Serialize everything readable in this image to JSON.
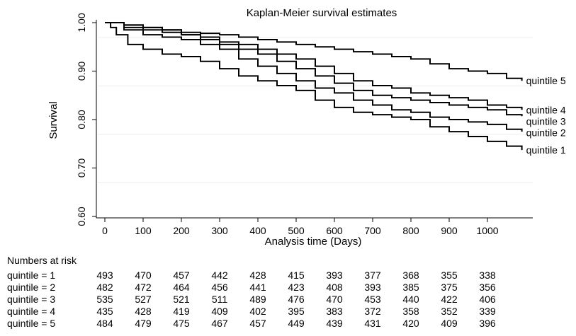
{
  "chart_data": {
    "type": "line",
    "title": "Kaplan-Meier survival estimates",
    "xlabel": "Analysis time (Days)",
    "ylabel": "Survival",
    "xlim": [
      0,
      1090
    ],
    "ylim": [
      0.6,
      1.0
    ],
    "xticks": [
      0,
      100,
      200,
      300,
      400,
      500,
      600,
      700,
      800,
      900,
      1000
    ],
    "xtick_labels": [
      "0",
      "100",
      "200",
      "300",
      "400",
      "500",
      "600",
      "700",
      "800",
      "900",
      "1000"
    ],
    "yticks": [
      0.6,
      0.7,
      0.8,
      0.9,
      1.0
    ],
    "ytick_labels": [
      "0.60",
      "0.70",
      "0.80",
      "0.90",
      "1.00"
    ],
    "grid": true,
    "series": [
      {
        "name": "quintile 1",
        "x": [
          0,
          15,
          30,
          60,
          100,
          150,
          200,
          250,
          300,
          350,
          400,
          450,
          500,
          550,
          600,
          650,
          700,
          750,
          800,
          850,
          900,
          950,
          1000,
          1050,
          1090
        ],
        "y": [
          1.0,
          0.99,
          0.975,
          0.955,
          0.945,
          0.935,
          0.93,
          0.92,
          0.905,
          0.89,
          0.88,
          0.87,
          0.86,
          0.84,
          0.825,
          0.815,
          0.81,
          0.805,
          0.8,
          0.785,
          0.775,
          0.765,
          0.755,
          0.745,
          0.737
        ]
      },
      {
        "name": "quintile 2",
        "x": [
          0,
          50,
          100,
          150,
          200,
          250,
          300,
          350,
          400,
          450,
          500,
          550,
          600,
          650,
          700,
          750,
          800,
          850,
          900,
          950,
          1000,
          1050,
          1090
        ],
        "y": [
          1.0,
          0.985,
          0.975,
          0.97,
          0.965,
          0.955,
          0.945,
          0.925,
          0.91,
          0.895,
          0.88,
          0.865,
          0.855,
          0.84,
          0.83,
          0.82,
          0.815,
          0.805,
          0.8,
          0.795,
          0.79,
          0.78,
          0.775
        ]
      },
      {
        "name": "quintile 3",
        "x": [
          0,
          50,
          100,
          150,
          200,
          250,
          300,
          350,
          400,
          450,
          500,
          550,
          600,
          650,
          700,
          750,
          800,
          850,
          900,
          950,
          1000,
          1050,
          1090
        ],
        "y": [
          1.0,
          0.99,
          0.985,
          0.98,
          0.975,
          0.965,
          0.955,
          0.945,
          0.935,
          0.92,
          0.905,
          0.89,
          0.875,
          0.86,
          0.85,
          0.845,
          0.84,
          0.835,
          0.83,
          0.825,
          0.82,
          0.81,
          0.807
        ]
      },
      {
        "name": "quintile 4",
        "x": [
          0,
          50,
          100,
          150,
          200,
          250,
          300,
          350,
          400,
          450,
          500,
          550,
          600,
          650,
          700,
          750,
          800,
          850,
          900,
          950,
          1000,
          1050,
          1090
        ],
        "y": [
          1.0,
          0.995,
          0.99,
          0.985,
          0.975,
          0.97,
          0.96,
          0.955,
          0.945,
          0.935,
          0.925,
          0.91,
          0.895,
          0.88,
          0.87,
          0.865,
          0.855,
          0.85,
          0.845,
          0.84,
          0.83,
          0.825,
          0.82
        ]
      },
      {
        "name": "quintile 5",
        "x": [
          0,
          50,
          100,
          150,
          200,
          250,
          300,
          350,
          400,
          450,
          500,
          550,
          600,
          650,
          700,
          750,
          800,
          850,
          900,
          950,
          1000,
          1050,
          1090
        ],
        "y": [
          1.0,
          0.995,
          0.99,
          0.985,
          0.98,
          0.978,
          0.975,
          0.97,
          0.965,
          0.96,
          0.955,
          0.95,
          0.945,
          0.94,
          0.935,
          0.93,
          0.925,
          0.915,
          0.905,
          0.9,
          0.895,
          0.885,
          0.88
        ]
      }
    ],
    "risk_table": {
      "heading": "Numbers at risk",
      "times": [
        0,
        100,
        200,
        300,
        400,
        500,
        600,
        700,
        800,
        900,
        1000
      ],
      "rows": [
        {
          "label": "quintile = 1",
          "values": [
            "493",
            "470",
            "457",
            "442",
            "428",
            "415",
            "393",
            "377",
            "368",
            "355",
            "338"
          ]
        },
        {
          "label": "quintile = 2",
          "values": [
            "482",
            "472",
            "464",
            "456",
            "441",
            "423",
            "408",
            "393",
            "385",
            "375",
            "356"
          ]
        },
        {
          "label": "quintile = 3",
          "values": [
            "535",
            "527",
            "521",
            "511",
            "489",
            "476",
            "470",
            "453",
            "440",
            "422",
            "406"
          ]
        },
        {
          "label": "quintile = 4",
          "values": [
            "435",
            "428",
            "419",
            "409",
            "402",
            "395",
            "383",
            "372",
            "358",
            "352",
            "339"
          ]
        },
        {
          "label": "quintile = 5",
          "values": [
            "484",
            "479",
            "475",
            "467",
            "457",
            "449",
            "439",
            "431",
            "420",
            "409",
            "396"
          ]
        }
      ]
    }
  }
}
